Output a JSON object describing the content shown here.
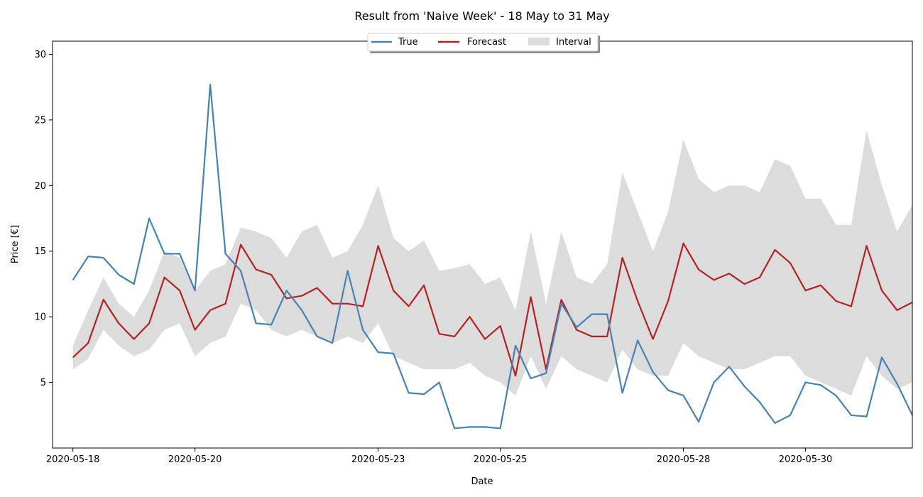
{
  "chart_data": {
    "type": "line",
    "title": "Result from 'Naive Week' - 18 May to 31 May",
    "xlabel": "Date",
    "ylabel": "Price [€]",
    "xlim": [
      "2020-05-17T16:00",
      "2020-05-31T18:00"
    ],
    "ylim": [
      0,
      31
    ],
    "x_ticks": [
      "2020-05-18",
      "2020-05-20",
      "2020-05-23",
      "2020-05-25",
      "2020-05-28",
      "2020-05-30"
    ],
    "y_ticks": [
      5,
      10,
      15,
      20,
      25,
      30
    ],
    "grid": false,
    "legend_position": "top-center",
    "legend": [
      "True",
      "Forecast",
      "Interval"
    ],
    "x": [
      "2020-05-18T00:00",
      "2020-05-18T06:00",
      "2020-05-18T12:00",
      "2020-05-18T18:00",
      "2020-05-19T00:00",
      "2020-05-19T06:00",
      "2020-05-19T12:00",
      "2020-05-19T18:00",
      "2020-05-20T00:00",
      "2020-05-20T06:00",
      "2020-05-20T12:00",
      "2020-05-20T18:00",
      "2020-05-21T00:00",
      "2020-05-21T06:00",
      "2020-05-21T12:00",
      "2020-05-21T18:00",
      "2020-05-22T00:00",
      "2020-05-22T06:00",
      "2020-05-22T12:00",
      "2020-05-22T18:00",
      "2020-05-23T00:00",
      "2020-05-23T06:00",
      "2020-05-23T12:00",
      "2020-05-23T18:00",
      "2020-05-24T00:00",
      "2020-05-24T06:00",
      "2020-05-24T12:00",
      "2020-05-24T18:00",
      "2020-05-25T00:00",
      "2020-05-25T06:00",
      "2020-05-25T12:00",
      "2020-05-25T18:00",
      "2020-05-26T00:00",
      "2020-05-26T06:00",
      "2020-05-26T12:00",
      "2020-05-26T18:00",
      "2020-05-27T00:00",
      "2020-05-27T06:00",
      "2020-05-27T12:00",
      "2020-05-27T18:00",
      "2020-05-28T00:00",
      "2020-05-28T06:00",
      "2020-05-28T12:00",
      "2020-05-28T18:00",
      "2020-05-29T00:00",
      "2020-05-29T06:00",
      "2020-05-29T12:00",
      "2020-05-29T18:00",
      "2020-05-30T00:00",
      "2020-05-30T06:00",
      "2020-05-30T12:00",
      "2020-05-30T18:00",
      "2020-05-31T00:00",
      "2020-05-31T06:00",
      "2020-05-31T12:00",
      "2020-05-31T18:00"
    ],
    "series": [
      {
        "name": "True",
        "color": "#4682b4",
        "values": [
          12.8,
          14.6,
          14.5,
          13.2,
          12.5,
          17.5,
          14.8,
          14.8,
          12.0,
          27.7,
          14.8,
          13.5,
          9.5,
          9.4,
          12.0,
          10.5,
          8.5,
          8.0,
          13.5,
          9.0,
          7.3,
          7.2,
          4.2,
          4.1,
          5.0,
          1.5,
          1.6,
          1.6,
          1.5,
          7.8,
          5.3,
          5.7,
          11.0,
          9.2,
          10.2,
          10.2,
          4.2,
          8.2,
          5.8,
          4.4,
          4.0,
          2.0,
          5.0,
          6.2,
          4.7,
          3.5,
          1.9,
          2.5,
          5.0,
          4.8,
          4.0,
          2.5,
          2.4,
          6.9,
          4.9,
          2.5
        ]
      },
      {
        "name": "Forecast",
        "color": "#b22222",
        "values": [
          6.9,
          8.0,
          11.3,
          9.5,
          8.3,
          9.5,
          13.0,
          12.0,
          9.0,
          10.5,
          11.0,
          15.5,
          13.6,
          13.2,
          11.4,
          11.6,
          12.2,
          11.0,
          11.0,
          10.8,
          15.4,
          12.0,
          10.8,
          12.4,
          8.7,
          8.5,
          10.0,
          8.3,
          9.3,
          5.5,
          11.5,
          6.0,
          11.3,
          9.0,
          8.5,
          8.5,
          14.5,
          11.2,
          8.3,
          11.2,
          15.6,
          13.6,
          12.8,
          13.3,
          12.5,
          13.0,
          15.1,
          14.1,
          12.0,
          12.4,
          11.2,
          10.8,
          15.4,
          12.0,
          10.5,
          11.1
        ]
      },
      {
        "name": "Interval",
        "color": "#dcdcdc",
        "lower": [
          6.0,
          6.8,
          9.0,
          7.8,
          7.0,
          7.5,
          9.0,
          9.5,
          7.0,
          8.0,
          8.5,
          11.0,
          10.5,
          9.0,
          8.5,
          9.0,
          8.5,
          8.0,
          8.5,
          8.0,
          9.5,
          7.0,
          6.5,
          6.0,
          6.0,
          6.0,
          6.5,
          5.5,
          5.0,
          4.0,
          7.0,
          4.5,
          7.0,
          6.0,
          5.5,
          5.0,
          7.5,
          6.0,
          5.5,
          5.5,
          8.0,
          7.0,
          6.5,
          6.0,
          6.0,
          6.5,
          7.0,
          7.0,
          5.5,
          5.0,
          4.5,
          4.0,
          7.0,
          5.5,
          4.5,
          5.0
        ],
        "upper": [
          7.8,
          10.5,
          13.0,
          11.0,
          10.0,
          12.0,
          15.0,
          14.5,
          12.0,
          13.5,
          14.0,
          16.8,
          16.5,
          16.0,
          14.5,
          16.5,
          17.0,
          14.5,
          15.0,
          17.0,
          20.0,
          16.0,
          15.0,
          15.8,
          13.5,
          13.7,
          14.0,
          12.5,
          13.0,
          10.5,
          16.5,
          11.0,
          16.5,
          13.0,
          12.5,
          14.0,
          21.0,
          18.0,
          15.0,
          18.0,
          23.5,
          20.5,
          19.5,
          20.0,
          20.0,
          19.5,
          22.0,
          21.5,
          19.0,
          19.0,
          17.0,
          17.0,
          24.2,
          20.0,
          16.5,
          18.5
        ]
      }
    ]
  }
}
